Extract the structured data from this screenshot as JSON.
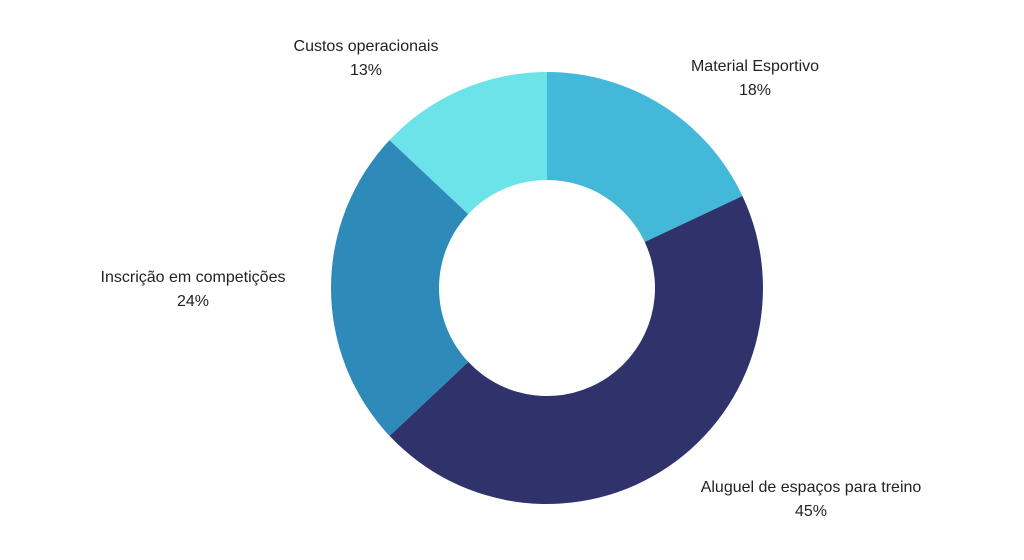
{
  "chart_data": {
    "type": "pie",
    "title": "",
    "slices": [
      {
        "label": "Material Esportivo",
        "value": 18,
        "value_label": "18%",
        "color": "#43B8D8"
      },
      {
        "label": "Aluguel de espaços para treino",
        "value": 45,
        "value_label": "45%",
        "color": "#30336B"
      },
      {
        "label": "Inscrição em competições",
        "value": 24,
        "value_label": "24%",
        "color": "#2E8AB9"
      },
      {
        "label": "Custos operacionais",
        "value": 13,
        "value_label": "13%",
        "color": "#6BE3E8"
      }
    ],
    "donut": true,
    "legend": "none"
  }
}
